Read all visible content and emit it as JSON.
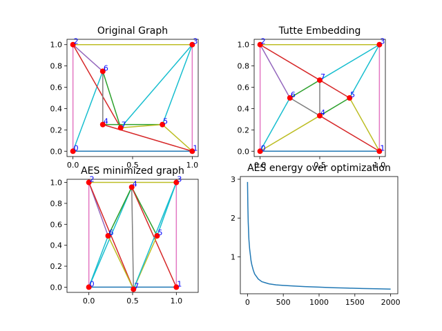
{
  "chart_data": [
    {
      "type": "scatter",
      "title": "Original Graph",
      "xlim": [
        -0.05,
        1.05
      ],
      "ylim": [
        -0.05,
        1.05
      ],
      "xticks": [
        0.0,
        0.5,
        1.0
      ],
      "xtick_labels": [
        "0.0",
        "0.5",
        "1.0"
      ],
      "yticks": [
        0.0,
        0.2,
        0.4,
        0.6,
        0.8,
        1.0
      ],
      "ytick_labels": [
        "0.0",
        "0.2",
        "0.4",
        "0.6",
        "0.8",
        "1.0"
      ],
      "nodes": [
        {
          "id": "0",
          "x": 0.0,
          "y": 0.0
        },
        {
          "id": "1",
          "x": 1.0,
          "y": 0.0
        },
        {
          "id": "2",
          "x": 0.0,
          "y": 1.0
        },
        {
          "id": "3",
          "x": 1.0,
          "y": 1.0
        },
        {
          "id": "4",
          "x": 0.25,
          "y": 0.25
        },
        {
          "id": "5",
          "x": 0.75,
          "y": 0.25
        },
        {
          "id": "6",
          "x": 0.25,
          "y": 0.75
        },
        {
          "id": "7",
          "x": 0.4,
          "y": 0.22
        }
      ],
      "edges": [
        {
          "from": 0,
          "to": 1,
          "color": "#1f77b4"
        },
        {
          "from": 0,
          "to": 2,
          "color": "#e377c2"
        },
        {
          "from": 1,
          "to": 3,
          "color": "#e377c2"
        },
        {
          "from": 2,
          "to": 3,
          "color": "#bcbd22"
        },
        {
          "from": 0,
          "to": 6,
          "color": "#17becf"
        },
        {
          "from": 2,
          "to": 6,
          "color": "#9467bd"
        },
        {
          "from": 2,
          "to": 7,
          "color": "#d62728"
        },
        {
          "from": 6,
          "to": 7,
          "color": "#2ca02c"
        },
        {
          "from": 6,
          "to": 4,
          "color": "#7f7f7f"
        },
        {
          "from": 4,
          "to": 5,
          "color": "#2ca02c"
        },
        {
          "from": 4,
          "to": 1,
          "color": "#d62728"
        },
        {
          "from": 7,
          "to": 5,
          "color": "#bcbd22"
        },
        {
          "from": 5,
          "to": 1,
          "color": "#bcbd22"
        },
        {
          "from": 5,
          "to": 3,
          "color": "#17becf"
        },
        {
          "from": 7,
          "to": 3,
          "color": "#17becf"
        }
      ]
    },
    {
      "type": "scatter",
      "title": "Tutte Embedding",
      "xlim": [
        -0.05,
        1.05
      ],
      "ylim": [
        -0.05,
        1.05
      ],
      "xticks": [
        0.0,
        0.5,
        1.0
      ],
      "xtick_labels": [
        "0.0",
        "0.5",
        "1.0"
      ],
      "yticks": [
        0.0,
        0.2,
        0.4,
        0.6,
        0.8,
        1.0
      ],
      "ytick_labels": [
        "0.0",
        "0.2",
        "0.4",
        "0.6",
        "0.8",
        "1.0"
      ],
      "nodes": [
        {
          "id": "0",
          "x": 0.0,
          "y": 0.0
        },
        {
          "id": "1",
          "x": 1.0,
          "y": 0.0
        },
        {
          "id": "2",
          "x": 0.0,
          "y": 1.0
        },
        {
          "id": "3",
          "x": 1.0,
          "y": 1.0
        },
        {
          "id": "4",
          "x": 0.5,
          "y": 0.333
        },
        {
          "id": "5",
          "x": 0.75,
          "y": 0.5
        },
        {
          "id": "6",
          "x": 0.25,
          "y": 0.5
        },
        {
          "id": "7",
          "x": 0.5,
          "y": 0.667
        }
      ],
      "edges": [
        {
          "from": 0,
          "to": 1,
          "color": "#1f77b4"
        },
        {
          "from": 0,
          "to": 2,
          "color": "#e377c2"
        },
        {
          "from": 1,
          "to": 3,
          "color": "#e377c2"
        },
        {
          "from": 2,
          "to": 3,
          "color": "#bcbd22"
        },
        {
          "from": 0,
          "to": 6,
          "color": "#17becf"
        },
        {
          "from": 2,
          "to": 6,
          "color": "#9467bd"
        },
        {
          "from": 2,
          "to": 7,
          "color": "#d62728"
        },
        {
          "from": 6,
          "to": 7,
          "color": "#2ca02c"
        },
        {
          "from": 6,
          "to": 4,
          "color": "#7f7f7f"
        },
        {
          "from": 7,
          "to": 4,
          "color": "#7f7f7f"
        },
        {
          "from": 4,
          "to": 5,
          "color": "#2ca02c"
        },
        {
          "from": 4,
          "to": 1,
          "color": "#d62728"
        },
        {
          "from": 0,
          "to": 4,
          "color": "#bcbd22"
        },
        {
          "from": 7,
          "to": 5,
          "color": "#d62728"
        },
        {
          "from": 5,
          "to": 1,
          "color": "#bcbd22"
        },
        {
          "from": 5,
          "to": 3,
          "color": "#17becf"
        },
        {
          "from": 7,
          "to": 3,
          "color": "#17becf"
        }
      ]
    },
    {
      "type": "scatter",
      "title": "AES minimized graph",
      "xlim": [
        -0.25,
        1.25
      ],
      "ylim": [
        -0.05,
        1.03
      ],
      "xticks": [
        0.0,
        0.5,
        1.0
      ],
      "xtick_labels": [
        "0.0",
        "0.5",
        "1.0"
      ],
      "yticks": [
        0.0,
        0.2,
        0.4,
        0.6,
        0.8,
        1.0
      ],
      "ytick_labels": [
        "0.0",
        "0.2",
        "0.4",
        "0.6",
        "0.8",
        "1.0"
      ],
      "nodes": [
        {
          "id": "0",
          "x": 0.0,
          "y": 0.0
        },
        {
          "id": "1",
          "x": 1.0,
          "y": 0.0
        },
        {
          "id": "2",
          "x": 0.0,
          "y": 1.0
        },
        {
          "id": "3",
          "x": 1.0,
          "y": 1.0
        },
        {
          "id": "4",
          "x": 0.49,
          "y": 0.955
        },
        {
          "id": "5",
          "x": 0.78,
          "y": 0.49
        },
        {
          "id": "6",
          "x": 0.22,
          "y": 0.49
        },
        {
          "id": "7",
          "x": 0.51,
          "y": -0.02
        }
      ],
      "edges": [
        {
          "from": 0,
          "to": 1,
          "color": "#1f77b4"
        },
        {
          "from": 0,
          "to": 2,
          "color": "#e377c2"
        },
        {
          "from": 1,
          "to": 3,
          "color": "#e377c2"
        },
        {
          "from": 2,
          "to": 3,
          "color": "#bcbd22"
        },
        {
          "from": 0,
          "to": 4,
          "color": "#17becf"
        },
        {
          "from": 2,
          "to": 6,
          "color": "#9467bd"
        },
        {
          "from": 2,
          "to": 7,
          "color": "#d62728"
        },
        {
          "from": 6,
          "to": 4,
          "color": "#2ca02c"
        },
        {
          "from": 4,
          "to": 7,
          "color": "#7f7f7f"
        },
        {
          "from": 4,
          "to": 5,
          "color": "#2ca02c"
        },
        {
          "from": 4,
          "to": 1,
          "color": "#d62728"
        },
        {
          "from": 6,
          "to": 7,
          "color": "#bcbd22"
        },
        {
          "from": 7,
          "to": 5,
          "color": "#bcbd22"
        },
        {
          "from": 5,
          "to": 3,
          "color": "#17becf"
        },
        {
          "from": 0,
          "to": 6,
          "color": "#17becf"
        },
        {
          "from": 7,
          "to": 3,
          "color": "#17becf"
        }
      ]
    },
    {
      "type": "line",
      "title": "AES energy over optimization",
      "xlim": [
        -100,
        2100
      ],
      "ylim": [
        0.05,
        3.07
      ],
      "xticks": [
        0,
        500,
        1000,
        1500,
        2000
      ],
      "xtick_labels": [
        "0",
        "500",
        "1000",
        "1500",
        "2000"
      ],
      "yticks": [
        1,
        2,
        3
      ],
      "ytick_labels": [
        "1",
        "2",
        "3"
      ],
      "series": [
        {
          "color": "#1f77b4",
          "x": [
            0,
            5,
            10,
            20,
            30,
            40,
            50,
            60,
            80,
            100,
            150,
            200,
            300,
            400,
            500,
            600,
            800,
            1000,
            1200,
            1400,
            1600,
            1800,
            2000
          ],
          "y": [
            2.93,
            2.3,
            1.9,
            1.45,
            1.2,
            1.05,
            0.9,
            0.8,
            0.66,
            0.56,
            0.43,
            0.36,
            0.305,
            0.28,
            0.265,
            0.255,
            0.235,
            0.22,
            0.205,
            0.195,
            0.185,
            0.178,
            0.17
          ]
        }
      ]
    }
  ]
}
